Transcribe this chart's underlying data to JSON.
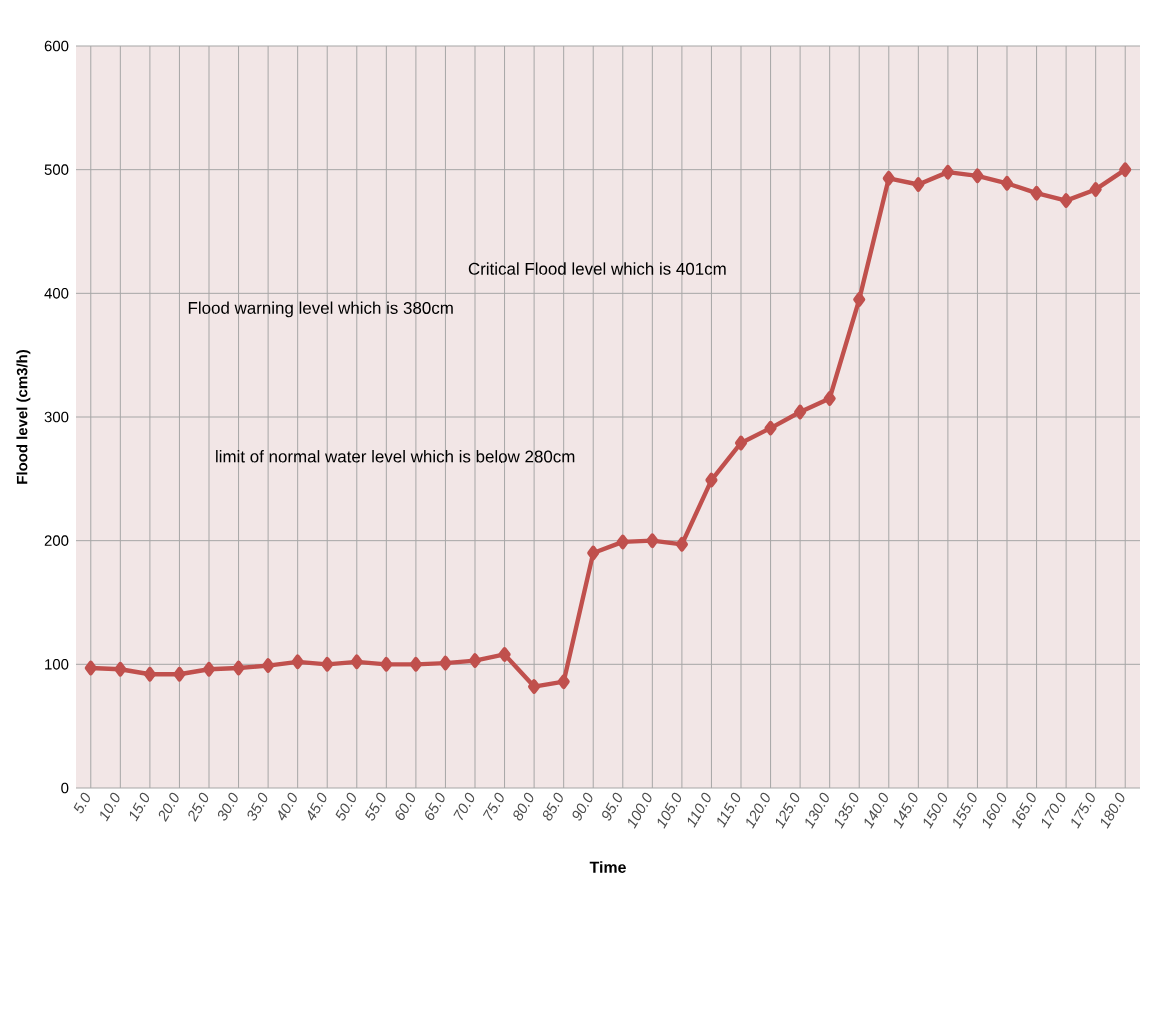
{
  "chart_data": {
    "type": "line",
    "xlabel": "Time",
    "ylabel": "Flood level  (cm3/h)",
    "categories": [
      "5.0",
      "10.0",
      "15.0",
      "20.0",
      "25.0",
      "30.0",
      "35.0",
      "40.0",
      "45.0",
      "50.0",
      "55.0",
      "60.0",
      "65.0",
      "70.0",
      "75.0",
      "80.0",
      "85.0",
      "90.0",
      "95.0",
      "100.0",
      "105.0",
      "110.0",
      "115.0",
      "120.0",
      "125.0",
      "130.0",
      "135.0",
      "140.0",
      "145.0",
      "150.0",
      "155.0",
      "160.0",
      "165.0",
      "170.0",
      "175.0",
      "180.0"
    ],
    "series": [
      {
        "color": "#c0504d",
        "values": [
          97,
          96,
          92,
          92,
          96,
          97,
          99,
          102,
          100,
          102,
          100,
          100,
          101,
          103,
          108,
          82,
          86,
          190,
          199,
          200,
          197,
          249,
          279,
          291,
          304,
          315,
          395,
          493,
          488,
          498,
          495,
          489,
          481,
          475,
          484,
          500
        ]
      }
    ],
    "ylim": [
      0,
      600
    ],
    "yticks": [
      0,
      100,
      200,
      300,
      400,
      500,
      600
    ],
    "grid": true,
    "marker": "diamond",
    "line_style": "solid",
    "annotations": [
      "Critical Flood level  which is 401cm",
      "Flood warning level which is 380cm",
      "limit of normal water level which is below  280cm"
    ]
  }
}
